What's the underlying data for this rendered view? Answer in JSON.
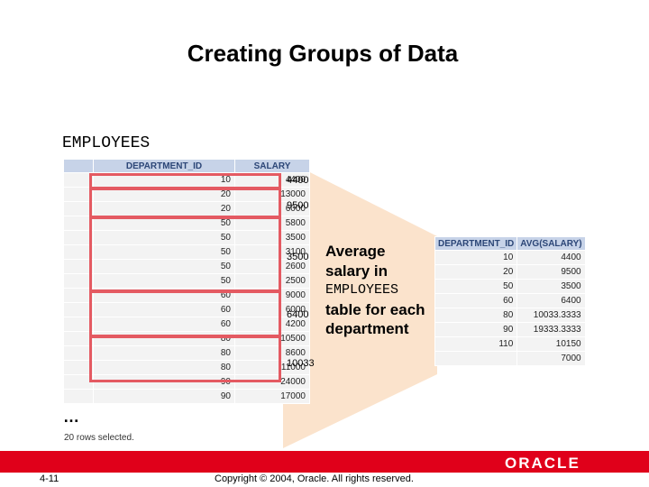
{
  "slide": {
    "title": "Creating Groups of Data",
    "table_name": "EMPLOYEES",
    "ellipsis": "…",
    "rows_selected": "20 rows selected.",
    "description": {
      "line1": "Average",
      "line2": "salary in",
      "line3": "EMPLOYEES",
      "line4": "table for each",
      "line5": "department"
    },
    "group_averages": [
      "4400",
      "9500",
      "3500",
      "6400",
      "10033"
    ],
    "employees_table": {
      "headers": [
        "",
        "DEPARTMENT_ID",
        "SALARY"
      ],
      "rows": [
        [
          "10",
          "4400"
        ],
        [
          "20",
          "13000"
        ],
        [
          "20",
          "6000"
        ],
        [
          "50",
          "5800"
        ],
        [
          "50",
          "3500"
        ],
        [
          "50",
          "3100"
        ],
        [
          "50",
          "2600"
        ],
        [
          "50",
          "2500"
        ],
        [
          "60",
          "9000"
        ],
        [
          "60",
          "6000"
        ],
        [
          "60",
          "4200"
        ],
        [
          "80",
          "10500"
        ],
        [
          "80",
          "8600"
        ],
        [
          "80",
          "11000"
        ],
        [
          "90",
          "24000"
        ],
        [
          "90",
          "17000"
        ]
      ]
    },
    "avg_table": {
      "headers": [
        "DEPARTMENT_ID",
        "AVG(SALARY)"
      ],
      "rows": [
        [
          "10",
          "4400"
        ],
        [
          "20",
          "9500"
        ],
        [
          "50",
          "3500"
        ],
        [
          "60",
          "6400"
        ],
        [
          "80",
          "10033.3333"
        ],
        [
          "90",
          "19333.3333"
        ],
        [
          "110",
          "10150"
        ],
        [
          "",
          "7000"
        ]
      ]
    },
    "footer": {
      "page": "4-11",
      "copyright": "Copyright © 2004, Oracle.  All rights reserved.",
      "logo": "ORACLE"
    },
    "colors": {
      "funnel": "#fbe3cc",
      "highlight": "#e45a62",
      "bar": "#e0001a",
      "header_bg": "#c7d3e8"
    }
  }
}
